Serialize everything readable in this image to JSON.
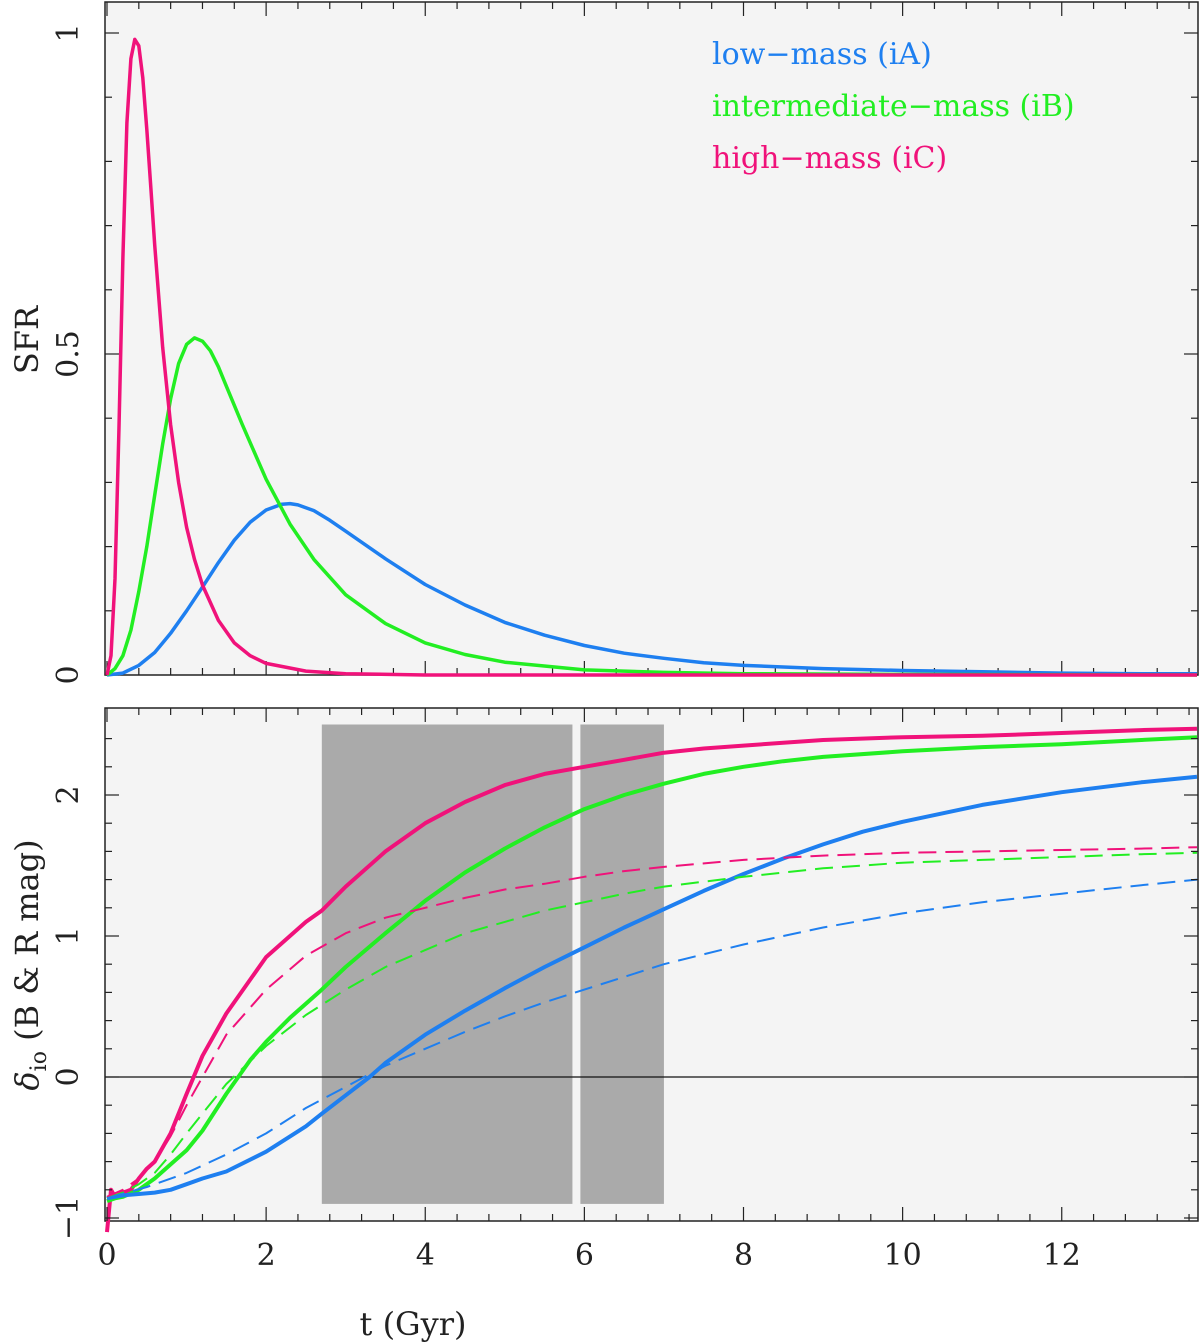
{
  "chart_data": [
    {
      "type": "line",
      "panel": "top",
      "ylabel": "SFR",
      "xlim": [
        0,
        13.7
      ],
      "ylim": [
        0,
        1.0
      ],
      "yticks": [
        0,
        0.5,
        1
      ],
      "ytick_labels": [
        "0",
        "0.5",
        "1"
      ],
      "legend": {
        "placement": "top-right",
        "entries": [
          "low−mass (iA)",
          "intermediate−mass (iB)",
          "high−mass (iC)"
        ]
      },
      "series": [
        {
          "name": "low−mass (iA)",
          "color": "#1e7ff0",
          "style": "solid",
          "x": [
            0,
            0.2,
            0.4,
            0.6,
            0.8,
            1.0,
            1.2,
            1.4,
            1.6,
            1.8,
            2.0,
            2.2,
            2.3,
            2.4,
            2.6,
            2.8,
            3.0,
            3.5,
            4.0,
            4.5,
            5.0,
            5.5,
            6.0,
            6.5,
            7.0,
            7.5,
            8.0,
            9.0,
            10.0,
            11.0,
            12.0,
            13.0,
            13.7
          ],
          "y": [
            0,
            0.003,
            0.015,
            0.035,
            0.065,
            0.1,
            0.137,
            0.175,
            0.21,
            0.238,
            0.257,
            0.266,
            0.267,
            0.265,
            0.256,
            0.241,
            0.224,
            0.181,
            0.141,
            0.109,
            0.082,
            0.062,
            0.046,
            0.034,
            0.026,
            0.019,
            0.015,
            0.01,
            0.007,
            0.005,
            0.003,
            0.002,
            0.002
          ]
        },
        {
          "name": "intermediate−mass (iB)",
          "color": "#22ee22",
          "style": "solid",
          "x": [
            0,
            0.1,
            0.2,
            0.3,
            0.4,
            0.5,
            0.6,
            0.7,
            0.8,
            0.9,
            1.0,
            1.1,
            1.2,
            1.3,
            1.4,
            1.5,
            1.7,
            2.0,
            2.3,
            2.6,
            3.0,
            3.5,
            4.0,
            4.5,
            5.0,
            6.0,
            7.0,
            8.0,
            10.0,
            13.7
          ],
          "y": [
            0,
            0.01,
            0.03,
            0.07,
            0.13,
            0.2,
            0.28,
            0.36,
            0.43,
            0.485,
            0.515,
            0.525,
            0.52,
            0.505,
            0.48,
            0.45,
            0.39,
            0.305,
            0.235,
            0.18,
            0.125,
            0.08,
            0.05,
            0.032,
            0.02,
            0.008,
            0.004,
            0.002,
            0.001,
            0.0
          ]
        },
        {
          "name": "high−mass (iC)",
          "color": "#f0127a",
          "style": "solid",
          "x": [
            0,
            0.05,
            0.1,
            0.15,
            0.2,
            0.25,
            0.3,
            0.35,
            0.4,
            0.45,
            0.5,
            0.55,
            0.6,
            0.7,
            0.8,
            0.9,
            1.0,
            1.1,
            1.2,
            1.4,
            1.6,
            1.8,
            2.0,
            2.5,
            3.0,
            4.0,
            6.0,
            13.7
          ],
          "y": [
            0,
            0.03,
            0.15,
            0.38,
            0.65,
            0.86,
            0.96,
            0.99,
            0.98,
            0.93,
            0.85,
            0.76,
            0.67,
            0.51,
            0.39,
            0.3,
            0.23,
            0.18,
            0.14,
            0.085,
            0.05,
            0.03,
            0.018,
            0.006,
            0.002,
            0.0,
            0.0,
            0.0
          ]
        }
      ]
    },
    {
      "type": "line",
      "panel": "bottom",
      "xlabel": "t (Gyr)",
      "ylabel": "δio (B & R mag)",
      "ylabel_main": "δ",
      "ylabel_sub": "io",
      "ylabel_rest": " (B & R mag)",
      "xlim": [
        0,
        13.7
      ],
      "ylim": [
        -1.1,
        2.55
      ],
      "xticks": [
        0,
        2,
        4,
        6,
        8,
        10,
        12
      ],
      "xtick_labels": [
        "0",
        "2",
        "4",
        "6",
        "8",
        "10",
        "12"
      ],
      "yticks": [
        -1,
        0,
        1,
        2
      ],
      "ytick_labels": [
        "−1",
        "0",
        "1",
        "2"
      ],
      "reference_line_y": 0,
      "shaded_regions": [
        {
          "x0": 2.7,
          "x1": 5.85,
          "y0": -0.9,
          "y1": 2.5,
          "color": "#aaaaaa"
        },
        {
          "x0": 5.95,
          "x1": 7.0,
          "y0": -0.9,
          "y1": 2.5,
          "color": "#aaaaaa"
        }
      ],
      "series": [
        {
          "name": "high−mass (iC) solid",
          "color": "#f0127a",
          "style": "solid",
          "x": [
            0,
            0.05,
            0.1,
            0.2,
            0.3,
            0.4,
            0.5,
            0.6,
            0.8,
            1.0,
            1.2,
            1.5,
            2.0,
            2.5,
            2.7,
            3.0,
            3.5,
            4.0,
            4.5,
            5.0,
            5.5,
            6.0,
            6.5,
            7.0,
            7.5,
            8.0,
            8.5,
            9.0,
            10.0,
            11.0,
            12.0,
            13.0,
            13.7
          ],
          "y": [
            -1.1,
            -0.8,
            -0.85,
            -0.82,
            -0.8,
            -0.72,
            -0.65,
            -0.6,
            -0.4,
            -0.12,
            0.15,
            0.45,
            0.85,
            1.1,
            1.18,
            1.35,
            1.6,
            1.8,
            1.95,
            2.07,
            2.15,
            2.2,
            2.25,
            2.3,
            2.33,
            2.35,
            2.37,
            2.39,
            2.41,
            2.42,
            2.44,
            2.46,
            2.47
          ]
        },
        {
          "name": "intermediate−mass (iB) solid",
          "color": "#22ee22",
          "style": "solid",
          "x": [
            0,
            0.1,
            0.2,
            0.4,
            0.6,
            0.8,
            1.0,
            1.2,
            1.5,
            1.8,
            2.0,
            2.3,
            2.7,
            3.0,
            3.5,
            4.0,
            4.5,
            5.0,
            5.5,
            6.0,
            6.5,
            7.0,
            7.5,
            8.0,
            8.5,
            9.0,
            10.0,
            11.0,
            12.0,
            13.0,
            13.7
          ],
          "y": [
            -0.88,
            -0.86,
            -0.85,
            -0.8,
            -0.72,
            -0.62,
            -0.52,
            -0.38,
            -0.12,
            0.12,
            0.25,
            0.42,
            0.62,
            0.78,
            1.02,
            1.25,
            1.45,
            1.62,
            1.77,
            1.9,
            2.0,
            2.08,
            2.15,
            2.2,
            2.24,
            2.27,
            2.31,
            2.34,
            2.36,
            2.39,
            2.41
          ]
        },
        {
          "name": "low−mass (iA) solid",
          "color": "#1e7ff0",
          "style": "solid",
          "x": [
            0,
            0.2,
            0.4,
            0.6,
            0.8,
            1.0,
            1.2,
            1.5,
            2.0,
            2.5,
            2.7,
            3.0,
            3.3,
            3.5,
            4.0,
            4.5,
            5.0,
            5.5,
            6.0,
            6.5,
            7.0,
            7.5,
            8.0,
            8.5,
            9.0,
            9.5,
            10.0,
            11.0,
            12.0,
            13.0,
            13.7
          ],
          "y": [
            -0.86,
            -0.84,
            -0.83,
            -0.82,
            -0.8,
            -0.76,
            -0.72,
            -0.67,
            -0.53,
            -0.35,
            -0.26,
            -0.13,
            0.0,
            0.1,
            0.3,
            0.47,
            0.63,
            0.78,
            0.92,
            1.06,
            1.19,
            1.32,
            1.44,
            1.55,
            1.65,
            1.74,
            1.81,
            1.93,
            2.02,
            2.09,
            2.13
          ]
        },
        {
          "name": "high−mass (iC) dashed",
          "color": "#f0127a",
          "style": "dashed",
          "x": [
            0,
            0.2,
            0.4,
            0.6,
            0.8,
            1.0,
            1.5,
            2.0,
            2.5,
            3.0,
            3.5,
            4.0,
            4.5,
            5.0,
            5.5,
            6.0,
            6.5,
            7.0,
            8.0,
            9.0,
            10.0,
            11.0,
            12.0,
            13.0,
            13.7
          ],
          "y": [
            -0.85,
            -0.8,
            -0.72,
            -0.6,
            -0.42,
            -0.2,
            0.3,
            0.62,
            0.86,
            1.02,
            1.13,
            1.2,
            1.27,
            1.33,
            1.37,
            1.42,
            1.46,
            1.49,
            1.54,
            1.57,
            1.59,
            1.6,
            1.61,
            1.62,
            1.63
          ]
        },
        {
          "name": "intermediate−mass (iB) dashed",
          "color": "#22ee22",
          "style": "dashed",
          "x": [
            0,
            0.2,
            0.4,
            0.6,
            0.8,
            1.0,
            1.5,
            2.0,
            2.5,
            3.0,
            3.5,
            4.0,
            4.5,
            5.0,
            5.5,
            6.0,
            6.5,
            7.0,
            8.0,
            9.0,
            10.0,
            11.0,
            12.0,
            13.0,
            13.7
          ],
          "y": [
            -0.86,
            -0.82,
            -0.76,
            -0.68,
            -0.55,
            -0.4,
            -0.05,
            0.22,
            0.44,
            0.62,
            0.78,
            0.9,
            1.02,
            1.1,
            1.18,
            1.24,
            1.3,
            1.35,
            1.42,
            1.48,
            1.52,
            1.54,
            1.56,
            1.58,
            1.59
          ]
        },
        {
          "name": "low−mass (iA) dashed",
          "color": "#1e7ff0",
          "style": "dashed",
          "x": [
            0,
            0.5,
            1.0,
            1.5,
            2.0,
            2.5,
            3.0,
            3.5,
            4.0,
            4.5,
            5.0,
            5.5,
            6.0,
            6.5,
            7.0,
            7.5,
            8.0,
            8.5,
            9.0,
            9.5,
            10.0,
            11.0,
            12.0,
            13.0,
            13.7
          ],
          "y": [
            -0.86,
            -0.78,
            -0.68,
            -0.55,
            -0.4,
            -0.22,
            -0.07,
            0.08,
            0.2,
            0.32,
            0.43,
            0.53,
            0.62,
            0.71,
            0.8,
            0.87,
            0.94,
            1.0,
            1.06,
            1.11,
            1.16,
            1.24,
            1.3,
            1.36,
            1.4
          ]
        }
      ]
    }
  ]
}
